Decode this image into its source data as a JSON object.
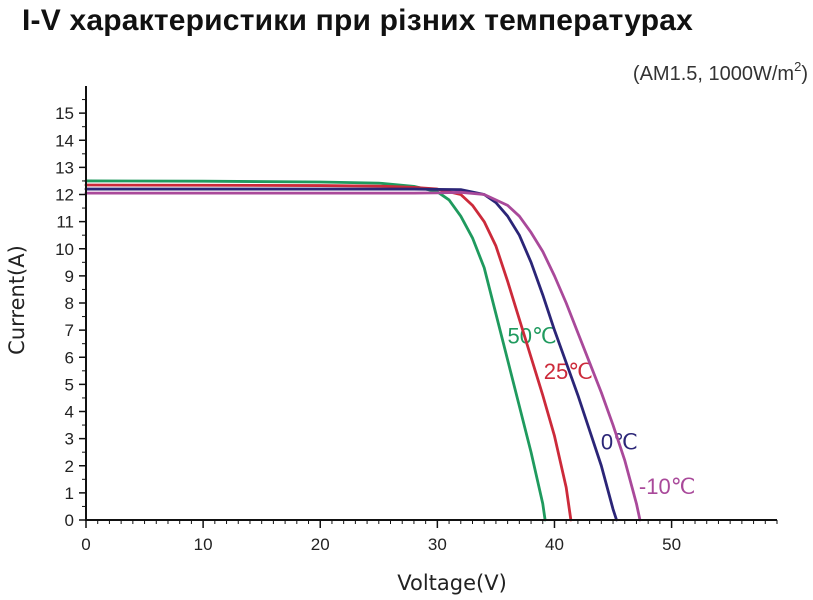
{
  "chart_data": {
    "type": "line",
    "title": "I-V характеристики при різних температурах",
    "subtitle": {
      "prefix": "(AM1.5,  1000W/m",
      "superscript": "2",
      "suffix": ")"
    },
    "xlabel": "Voltage(V)",
    "ylabel": "Current(A)",
    "xlim": [
      0,
      59
    ],
    "ylim": [
      0,
      16
    ],
    "xticks": [
      0,
      10,
      20,
      30,
      40,
      50
    ],
    "yticks": [
      0,
      1,
      2,
      3,
      4,
      5,
      6,
      7,
      8,
      9,
      10,
      11,
      12,
      13,
      14,
      15
    ],
    "grid": false,
    "legend": "inline labels",
    "series": [
      {
        "name": "50℃",
        "color": "#1f9a5e",
        "x": [
          0,
          10,
          20,
          25,
          28,
          30,
          31,
          32,
          33,
          34,
          35,
          36,
          37,
          38,
          39,
          39.2
        ],
        "y": [
          12.5,
          12.49,
          12.46,
          12.42,
          12.3,
          12.1,
          11.8,
          11.2,
          10.4,
          9.3,
          7.6,
          5.9,
          4.2,
          2.5,
          0.6,
          0
        ]
      },
      {
        "name": "25℃",
        "color": "#cc2a3a",
        "x": [
          0,
          10,
          20,
          25,
          28,
          30,
          32,
          33,
          34,
          35,
          36,
          37,
          38,
          39,
          40,
          41,
          41.4
        ],
        "y": [
          12.35,
          12.34,
          12.33,
          12.31,
          12.26,
          12.2,
          12.0,
          11.6,
          11.0,
          10.1,
          8.8,
          7.4,
          6.0,
          4.6,
          3.1,
          1.2,
          0
        ]
      },
      {
        "name": "0℃",
        "color": "#2b2577",
        "x": [
          0,
          10,
          20,
          28,
          30,
          32,
          34,
          35,
          36,
          37,
          38,
          39,
          40,
          41,
          42,
          43,
          44,
          45,
          45.3
        ],
        "y": [
          12.2,
          12.2,
          12.2,
          12.2,
          12.19,
          12.18,
          12.0,
          11.7,
          11.2,
          10.5,
          9.5,
          8.3,
          7.0,
          5.8,
          4.6,
          3.3,
          2.0,
          0.4,
          0
        ]
      },
      {
        "name": "-10℃",
        "color": "#a9499a",
        "x": [
          0,
          10,
          20,
          28,
          30,
          32,
          34,
          36,
          37,
          38,
          39,
          40,
          41,
          42,
          43,
          44,
          45,
          46,
          47,
          47.3
        ],
        "y": [
          12.05,
          12.05,
          12.05,
          12.05,
          12.06,
          12.08,
          12.0,
          11.6,
          11.2,
          10.6,
          9.9,
          9.0,
          8.0,
          6.9,
          5.8,
          4.7,
          3.5,
          2.2,
          0.6,
          0
        ]
      }
    ]
  }
}
